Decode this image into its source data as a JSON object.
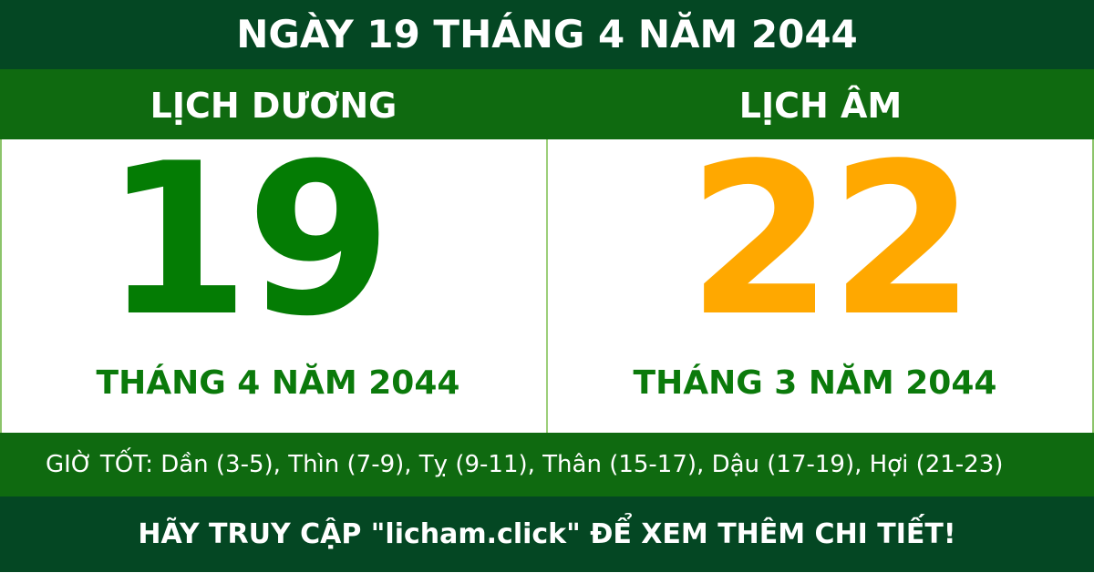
{
  "header": {
    "title": "NGÀY 19 THÁNG 4 NĂM 2044"
  },
  "solar": {
    "label": "LỊCH DƯƠNG",
    "day": "19",
    "month_year": "THÁNG 4 NĂM 2044"
  },
  "lunar": {
    "label": "LỊCH ÂM",
    "day": "22",
    "month_year": "THÁNG 3 NĂM 2044"
  },
  "good_hours": "GIỜ TỐT: Dần (3-5), Thìn (7-9), Tỵ (9-11), Thân (15-17), Dậu (17-19), Hợi (21-23)",
  "footer": {
    "text": "HÃY TRUY CẬP \"licham.click\" ĐỂ XEM THÊM CHI TIẾT!"
  },
  "colors": {
    "dark_green": "#044723",
    "green": "#0f6a10",
    "solar_day": "#047c04",
    "lunar_day": "#ffa800"
  }
}
